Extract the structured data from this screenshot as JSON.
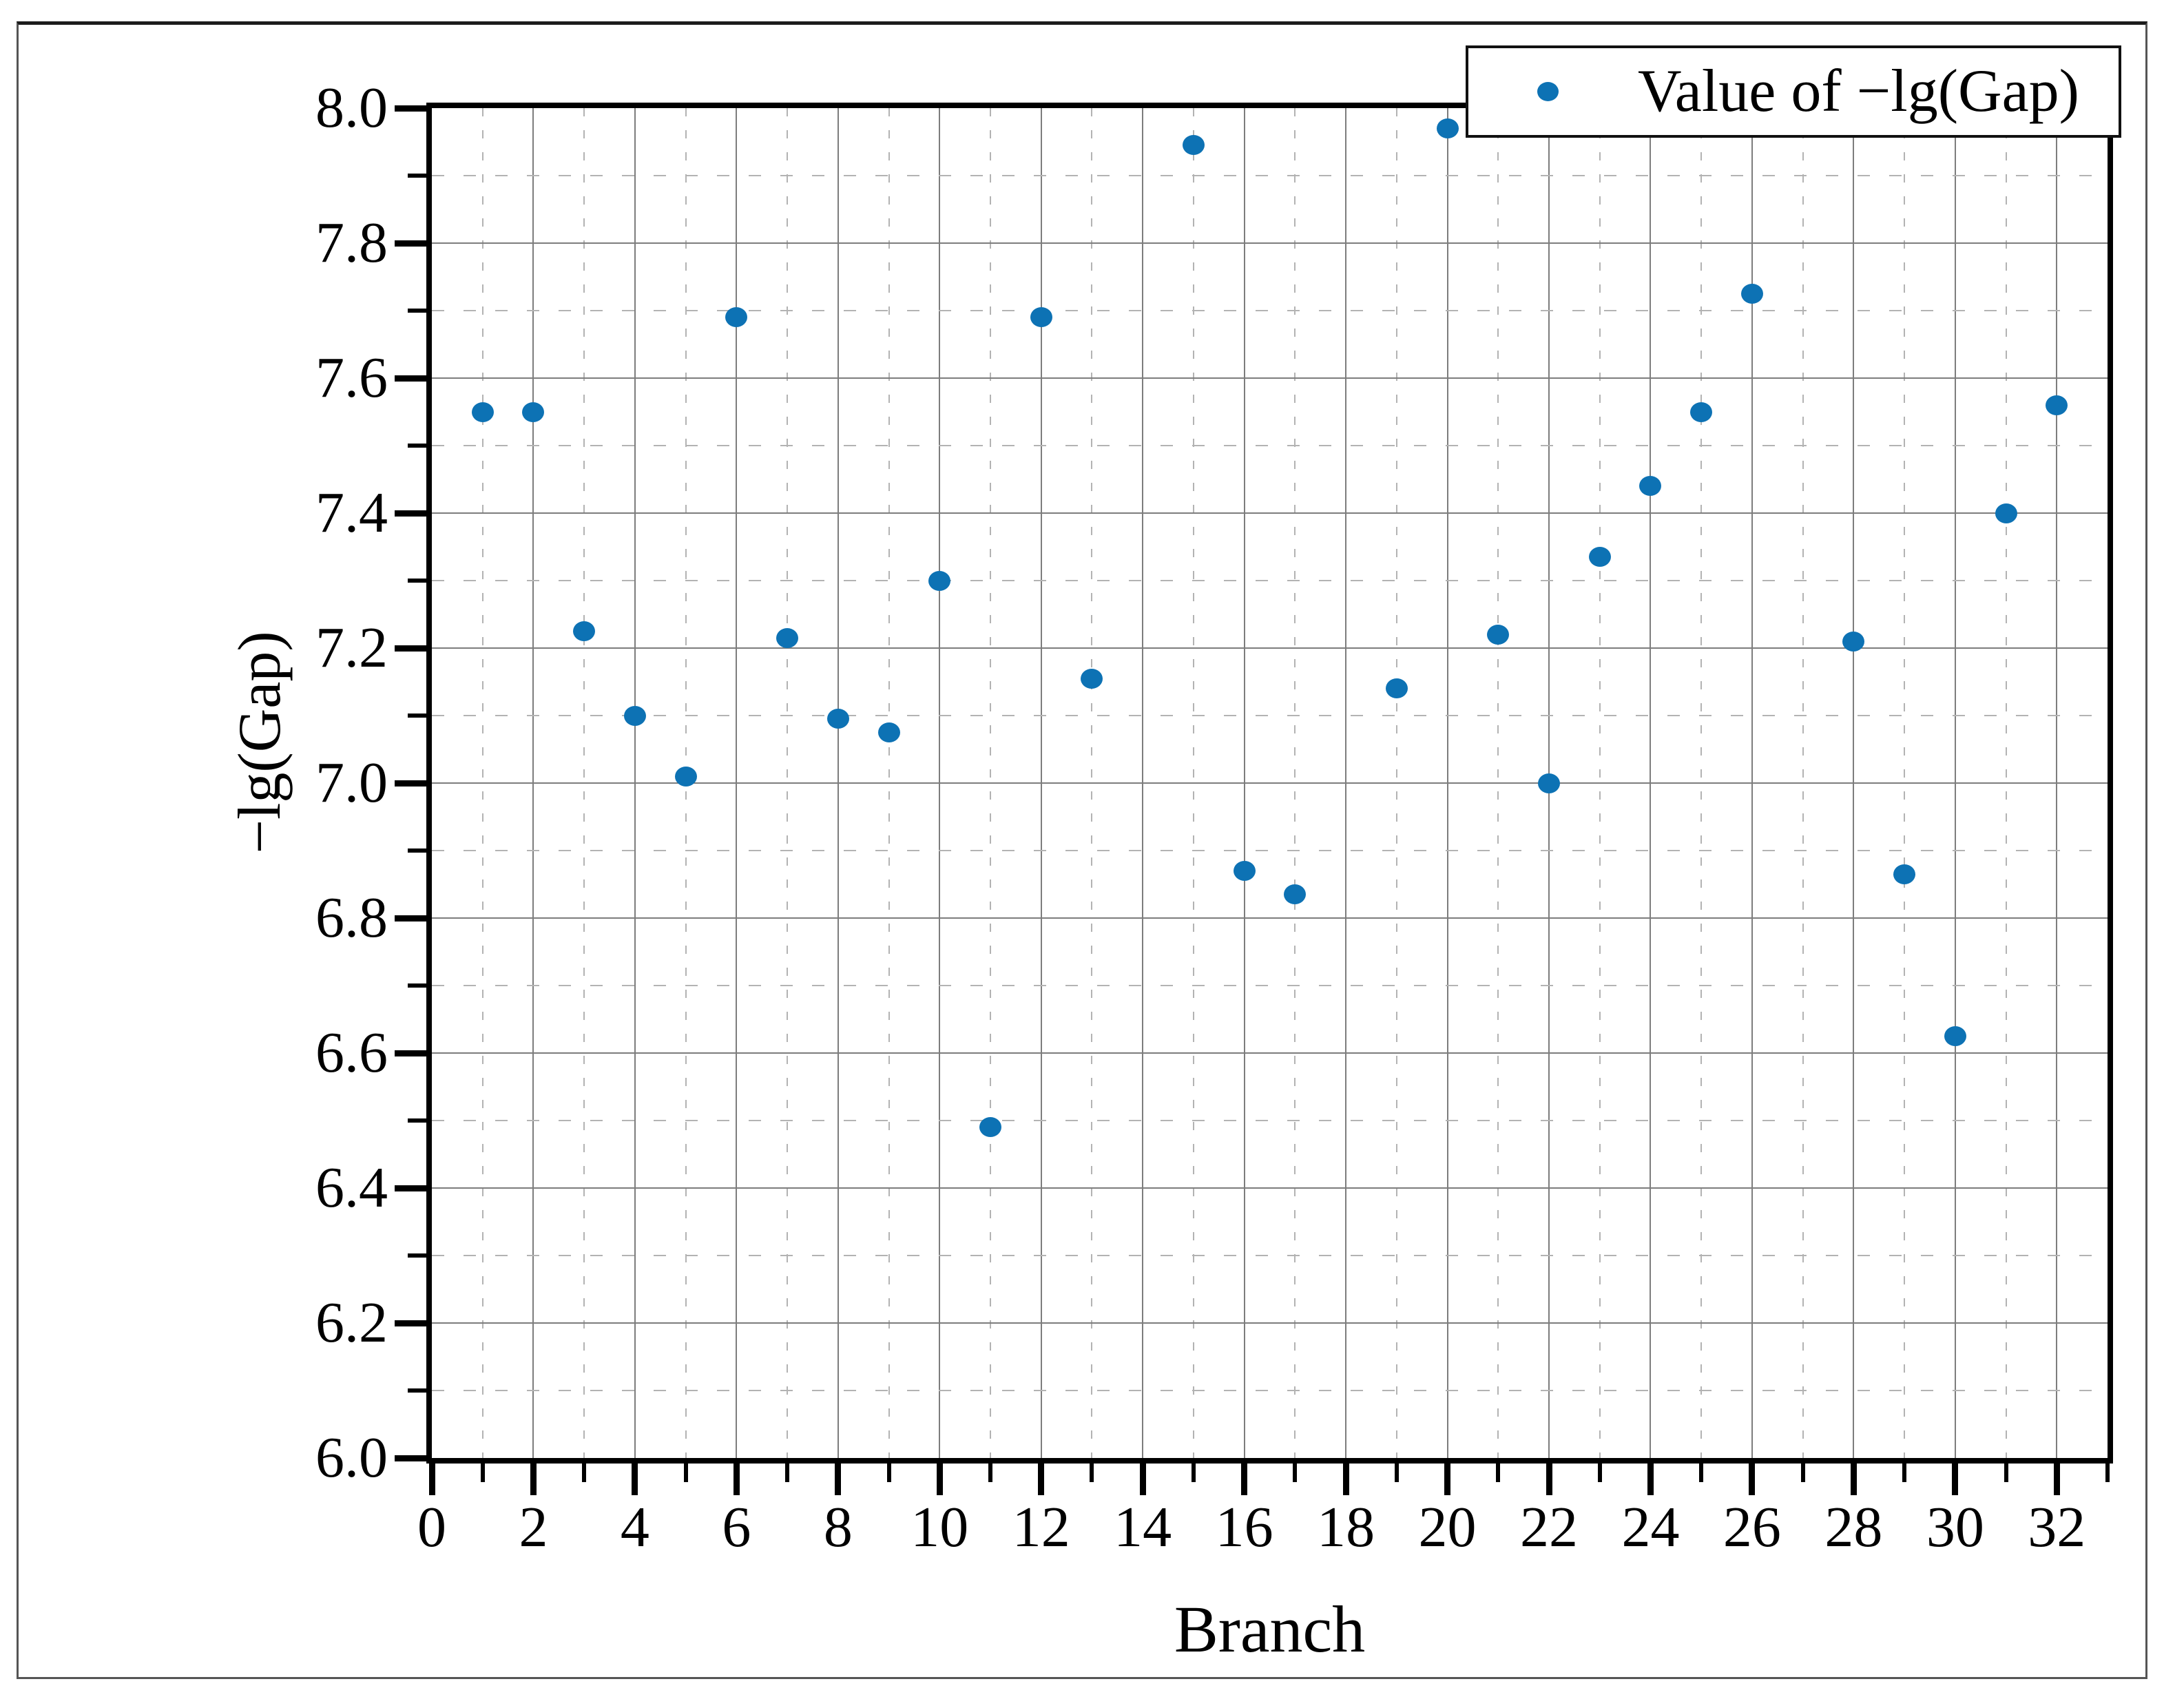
{
  "figure": {
    "background": "#ffffff",
    "frame_color": "#555555",
    "accent_blue": "#0d72b4"
  },
  "chart_data": {
    "type": "scatter",
    "title": "",
    "xlabel": "Branch",
    "ylabel": "−lg(Gap)",
    "legend_label": "Value of −lg(Gap)",
    "legend_position": "upper-right",
    "marker_color": "#0d72b4",
    "marker_shape": "circle",
    "xlim": [
      0,
      33
    ],
    "ylim": [
      6.0,
      8.0
    ],
    "grid": {
      "major": "solid",
      "minor": "dashed"
    },
    "x_major_tick_labels": [
      "0",
      "2",
      "4",
      "6",
      "8",
      "10",
      "12",
      "14",
      "16",
      "18",
      "20",
      "22",
      "24",
      "26",
      "28",
      "30",
      "32"
    ],
    "y_major_tick_labels": [
      "6.0",
      "6.2",
      "6.4",
      "6.6",
      "6.8",
      "7.0",
      "7.2",
      "7.4",
      "7.6",
      "7.8",
      "8.0"
    ],
    "x": [
      1,
      2,
      3,
      4,
      5,
      6,
      7,
      8,
      9,
      10,
      11,
      12,
      13,
      15,
      16,
      17,
      19,
      20,
      21,
      22,
      23,
      24,
      25,
      26,
      28,
      29,
      30,
      31,
      32
    ],
    "y": [
      7.55,
      7.55,
      7.225,
      7.1,
      7.01,
      7.69,
      7.215,
      7.095,
      7.075,
      7.3,
      6.49,
      7.69,
      7.155,
      7.945,
      6.87,
      6.835,
      7.14,
      7.97,
      7.22,
      7.0,
      7.335,
      7.44,
      7.55,
      7.725,
      7.21,
      6.865,
      6.625,
      7.4,
      7.56
    ]
  }
}
